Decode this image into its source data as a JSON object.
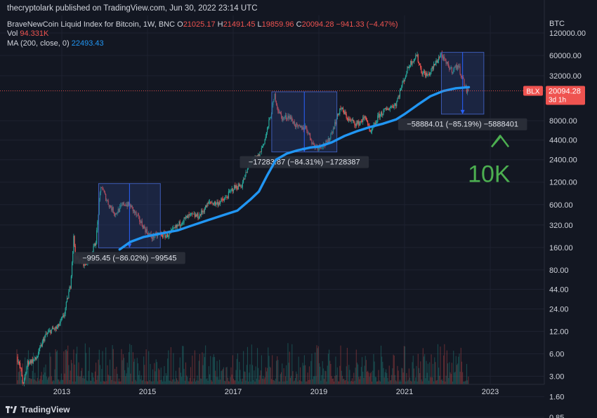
{
  "header": {
    "published": "thecryptolark published on TradingView.com, Jun 30, 2022 23:14 UTC",
    "symbol": "BraveNewCoin Liquid Index for Bitcoin, 1W, BNC",
    "o_label": "O",
    "o_value": "21025.17",
    "h_label": "H",
    "h_value": "21491.45",
    "l_label": "L",
    "l_value": "19859.96",
    "c_label": "C",
    "c_value": "20094.28",
    "change": "−941.33 (−4.47%)",
    "vol_label": "Vol",
    "vol_value": "94.331K",
    "ma_label": "MA (200, close, 0)",
    "ma_value": "22493.43"
  },
  "footer": {
    "brand": "TradingView"
  },
  "colors": {
    "background": "#131722",
    "up": "#26a69a",
    "down": "#ef5350",
    "ma": "#2196f3",
    "box": "#2a3e7a",
    "annotation": "#4caf50"
  },
  "chart_data": {
    "type": "candlestick",
    "y_scale": "log",
    "y_unit": "BTC",
    "yticks": [
      {
        "v": 120000,
        "label": "120000.00"
      },
      {
        "v": 60000,
        "label": "60000.00"
      },
      {
        "v": 32000,
        "label": "32000.00"
      },
      {
        "v": 8000,
        "label": "8000.00"
      },
      {
        "v": 4400,
        "label": "4400.00"
      },
      {
        "v": 2400,
        "label": "2400.00"
      },
      {
        "v": 1200,
        "label": "1200.00"
      },
      {
        "v": 600,
        "label": "600.00"
      },
      {
        "v": 320,
        "label": "320.00"
      },
      {
        "v": 160,
        "label": "160.00"
      },
      {
        "v": 80,
        "label": "80.00"
      },
      {
        "v": 44,
        "label": "44.00"
      },
      {
        "v": 24,
        "label": "24.00"
      },
      {
        "v": 12,
        "label": "12.00"
      },
      {
        "v": 6,
        "label": "6.00"
      },
      {
        "v": 3,
        "label": "3.00"
      },
      {
        "v": 1.6,
        "label": "1.60"
      },
      {
        "v": 0.85,
        "label": "0.85"
      }
    ],
    "xticks": [
      {
        "t": 2013,
        "label": "2013"
      },
      {
        "t": 2015,
        "label": "2015"
      },
      {
        "t": 2017,
        "label": "2017"
      },
      {
        "t": 2019,
        "label": "2019"
      },
      {
        "t": 2021,
        "label": "2021"
      },
      {
        "t": 2023,
        "label": "2023"
      }
    ],
    "price_path": [
      [
        2011.95,
        5.5
      ],
      [
        2012.05,
        3.5
      ],
      [
        2012.1,
        2.2
      ],
      [
        2012.2,
        4.6
      ],
      [
        2012.4,
        5.1
      ],
      [
        2012.6,
        10.2
      ],
      [
        2012.75,
        12.5
      ],
      [
        2012.9,
        13.4
      ],
      [
        2013.05,
        19.6
      ],
      [
        2013.2,
        50
      ],
      [
        2013.28,
        230
      ],
      [
        2013.32,
        110
      ],
      [
        2013.4,
        110
      ],
      [
        2013.55,
        95
      ],
      [
        2013.7,
        130
      ],
      [
        2013.8,
        200
      ],
      [
        2013.88,
        700
      ],
      [
        2013.92,
        1100
      ],
      [
        2014.0,
        800
      ],
      [
        2014.1,
        600
      ],
      [
        2014.25,
        450
      ],
      [
        2014.45,
        620
      ],
      [
        2014.6,
        580
      ],
      [
        2014.8,
        380
      ],
      [
        2015.0,
        250
      ],
      [
        2015.1,
        220
      ],
      [
        2015.3,
        240
      ],
      [
        2015.45,
        230
      ],
      [
        2015.6,
        270
      ],
      [
        2015.8,
        360
      ],
      [
        2016.0,
        430
      ],
      [
        2016.2,
        420
      ],
      [
        2016.45,
        650
      ],
      [
        2016.6,
        620
      ],
      [
        2016.8,
        700
      ],
      [
        2017.0,
        1000
      ],
      [
        2017.2,
        1100
      ],
      [
        2017.4,
        2200
      ],
      [
        2017.6,
        2700
      ],
      [
        2017.75,
        4700
      ],
      [
        2017.9,
        11000
      ],
      [
        2017.97,
        17500
      ],
      [
        2018.05,
        11000
      ],
      [
        2018.15,
        8500
      ],
      [
        2018.3,
        9300
      ],
      [
        2018.5,
        6400
      ],
      [
        2018.7,
        6500
      ],
      [
        2018.88,
        3700
      ],
      [
        2019.0,
        3600
      ],
      [
        2019.2,
        4000
      ],
      [
        2019.4,
        8000
      ],
      [
        2019.5,
        12000
      ],
      [
        2019.7,
        8200
      ],
      [
        2019.9,
        7200
      ],
      [
        2020.1,
        9000
      ],
      [
        2020.2,
        5200
      ],
      [
        2020.4,
        9400
      ],
      [
        2020.6,
        11500
      ],
      [
        2020.8,
        13500
      ],
      [
        2020.95,
        25000
      ],
      [
        2021.1,
        44000
      ],
      [
        2021.28,
        61000
      ],
      [
        2021.4,
        36000
      ],
      [
        2021.55,
        32000
      ],
      [
        2021.7,
        45000
      ],
      [
        2021.85,
        63000
      ],
      [
        2021.95,
        48000
      ],
      [
        2022.1,
        38000
      ],
      [
        2022.25,
        44000
      ],
      [
        2022.35,
        30000
      ],
      [
        2022.45,
        20000
      ],
      [
        2022.5,
        20094
      ]
    ],
    "ma200": [
      [
        2014.35,
        150
      ],
      [
        2014.6,
        190
      ],
      [
        2014.9,
        220
      ],
      [
        2015.3,
        245
      ],
      [
        2015.7,
        270
      ],
      [
        2016.0,
        310
      ],
      [
        2016.4,
        370
      ],
      [
        2016.8,
        440
      ],
      [
        2017.1,
        500
      ],
      [
        2017.4,
        700
      ],
      [
        2017.6,
        900
      ],
      [
        2017.8,
        1500
      ],
      [
        2018.0,
        2400
      ],
      [
        2018.25,
        2900
      ],
      [
        2018.5,
        3200
      ],
      [
        2018.8,
        3500
      ],
      [
        2019.0,
        3600
      ],
      [
        2019.3,
        4100
      ],
      [
        2019.6,
        5000
      ],
      [
        2019.9,
        5800
      ],
      [
        2020.2,
        6600
      ],
      [
        2020.5,
        7300
      ],
      [
        2020.8,
        8300
      ],
      [
        2021.0,
        9800
      ],
      [
        2021.3,
        13000
      ],
      [
        2021.6,
        17000
      ],
      [
        2021.9,
        20000
      ],
      [
        2022.2,
        21800
      ],
      [
        2022.5,
        22493
      ]
    ],
    "drawdowns": [
      {
        "t0": 2013.86,
        "t1": 2015.3,
        "high": 1150,
        "low": 158,
        "label": "−995.45 (−86.02%) −99545"
      },
      {
        "t0": 2017.9,
        "t1": 2019.42,
        "high": 19500,
        "low": 3050,
        "label": "−17283.87 (−84.31%) −1728387"
      },
      {
        "t0": 2021.86,
        "t1": 2022.85,
        "high": 66000,
        "low": 9800,
        "label": "−58884.01 (−85.19%) −5888401"
      }
    ],
    "last_price": {
      "value": 20094.28,
      "tag": "BLX",
      "price_label": "20094.28",
      "time_left": "3d 1h"
    },
    "annotation": {
      "text": "10K",
      "t": 2022.28,
      "v": 1500,
      "arrow_to": 5500
    }
  }
}
